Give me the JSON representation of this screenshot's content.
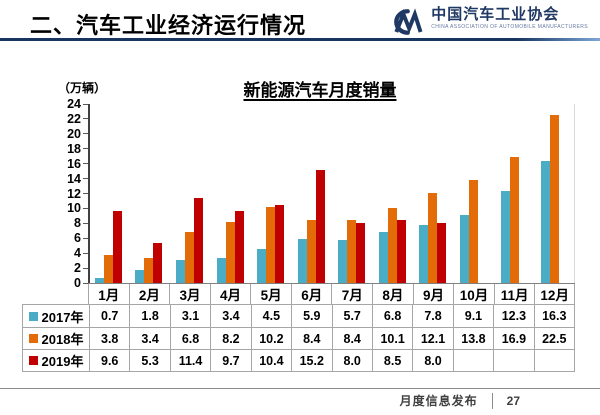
{
  "header": {
    "title": "二、汽车工业经济运行情况",
    "logo": {
      "mark": "CM-logo",
      "name": "中国汽车工业协会",
      "subtitle": "CHINA ASSOCIATION OF AUTOMOBILE MANUFACTURERS"
    }
  },
  "chart_data": {
    "type": "bar",
    "title": "新能源汽车月度销量",
    "unit_label": "（万辆）",
    "categories": [
      "1月",
      "2月",
      "3月",
      "4月",
      "5月",
      "6月",
      "7月",
      "8月",
      "9月",
      "10月",
      "11月",
      "12月"
    ],
    "series": [
      {
        "name": "2017年",
        "color": "#4BACC6",
        "values": [
          0.7,
          1.8,
          3.1,
          3.4,
          4.5,
          5.9,
          5.7,
          6.8,
          7.8,
          9.1,
          12.3,
          16.3
        ]
      },
      {
        "name": "2018年",
        "color": "#E36C09",
        "values": [
          3.8,
          3.4,
          6.8,
          8.2,
          10.2,
          8.4,
          8.4,
          10.1,
          12.1,
          13.8,
          16.9,
          22.5
        ]
      },
      {
        "name": "2019年",
        "color": "#C00000",
        "values": [
          9.6,
          5.3,
          11.4,
          9.7,
          10.4,
          15.2,
          8.0,
          8.5,
          8.0,
          null,
          null,
          null
        ]
      }
    ],
    "ylim": [
      0,
      24
    ],
    "ytick_step": 2,
    "grid": false,
    "legend_position": "table-left",
    "xlabel": "",
    "ylabel": "（万辆）"
  },
  "footer": {
    "label": "月度信息发布",
    "page": "27"
  }
}
